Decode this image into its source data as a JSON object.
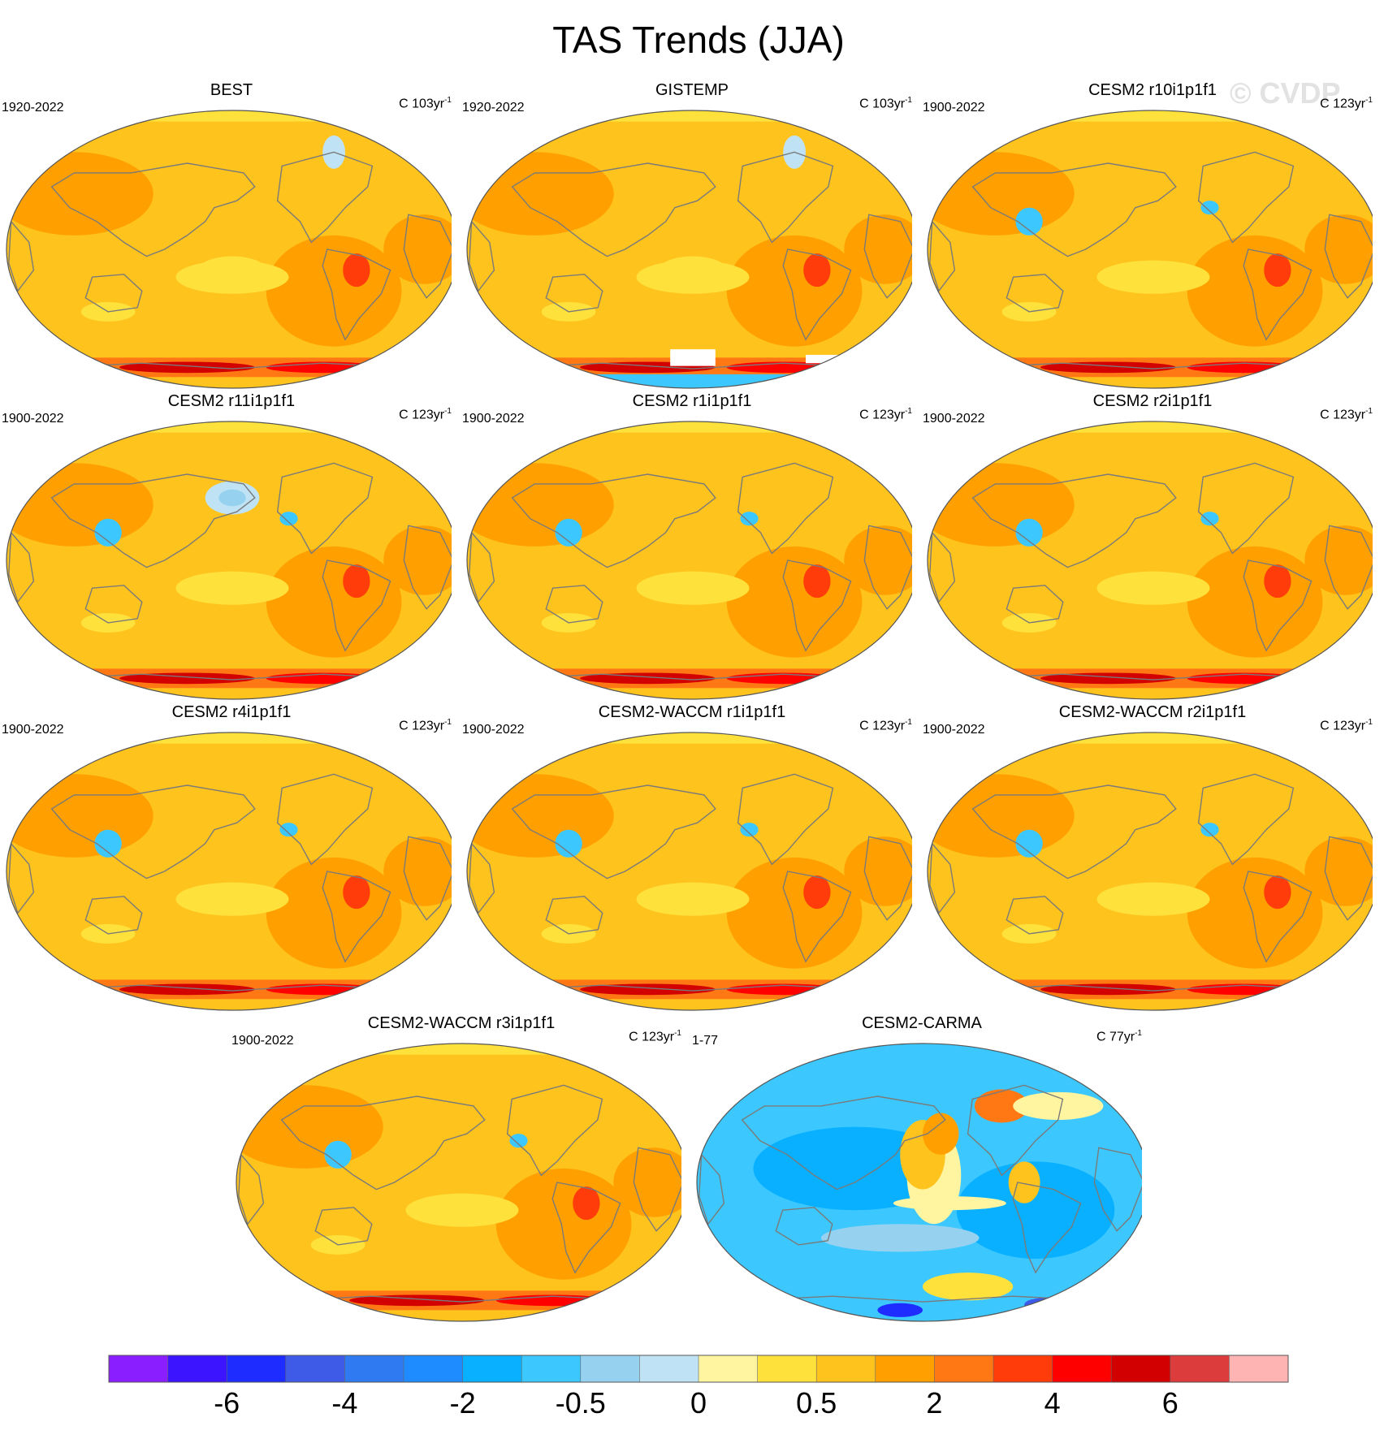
{
  "title": "TAS Trends (JJA)",
  "watermark": "© CVDP",
  "chart_data": {
    "type": "heatmap",
    "title": "TAS Trends (JJA)",
    "units_label": "C",
    "colorbar": {
      "colors": [
        "#8a1eff",
        "#3c14ff",
        "#1f2cff",
        "#3d5be6",
        "#2f7af0",
        "#1e8cff",
        "#08b0ff",
        "#3cc8ff",
        "#96d2f0",
        "#bfe3f5",
        "#fff5a0",
        "#ffe13c",
        "#ffc31e",
        "#ffa000",
        "#ff7814",
        "#ff3c0a",
        "#ff0000",
        "#d20000",
        "#dc3c3c",
        "#ffb4b4"
      ],
      "tick_labels": [
        "-6",
        "-4",
        "-2",
        "-0.5",
        "0",
        "0.5",
        "2",
        "4",
        "6"
      ]
    },
    "panels": [
      {
        "name": "BEST",
        "years": "1920-2022",
        "trend_length": "103",
        "pattern": "obs"
      },
      {
        "name": "GISTEMP",
        "years": "1920-2022",
        "trend_length": "103",
        "pattern": "obs_missing"
      },
      {
        "name": "CESM2 r10i1p1f1",
        "years": "1900-2022",
        "trend_length": "123",
        "pattern": "model"
      },
      {
        "name": "CESM2 r11i1p1f1",
        "years": "1900-2022",
        "trend_length": "123",
        "pattern": "model_blob"
      },
      {
        "name": "CESM2 r1i1p1f1",
        "years": "1900-2022",
        "trend_length": "123",
        "pattern": "model"
      },
      {
        "name": "CESM2 r2i1p1f1",
        "years": "1900-2022",
        "trend_length": "123",
        "pattern": "model"
      },
      {
        "name": "CESM2 r4i1p1f1",
        "years": "1900-2022",
        "trend_length": "123",
        "pattern": "model"
      },
      {
        "name": "CESM2-WACCM r1i1p1f1",
        "years": "1900-2022",
        "trend_length": "123",
        "pattern": "model"
      },
      {
        "name": "CESM2-WACCM r2i1p1f1",
        "years": "1900-2022",
        "trend_length": "123",
        "pattern": "model"
      },
      {
        "name": "CESM2-WACCM r3i1p1f1",
        "years": "1900-2022",
        "trend_length": "123",
        "pattern": "model"
      },
      {
        "name": "CESM2-CARMA",
        "years": "1-77",
        "trend_length": "77",
        "pattern": "cooling"
      }
    ]
  }
}
